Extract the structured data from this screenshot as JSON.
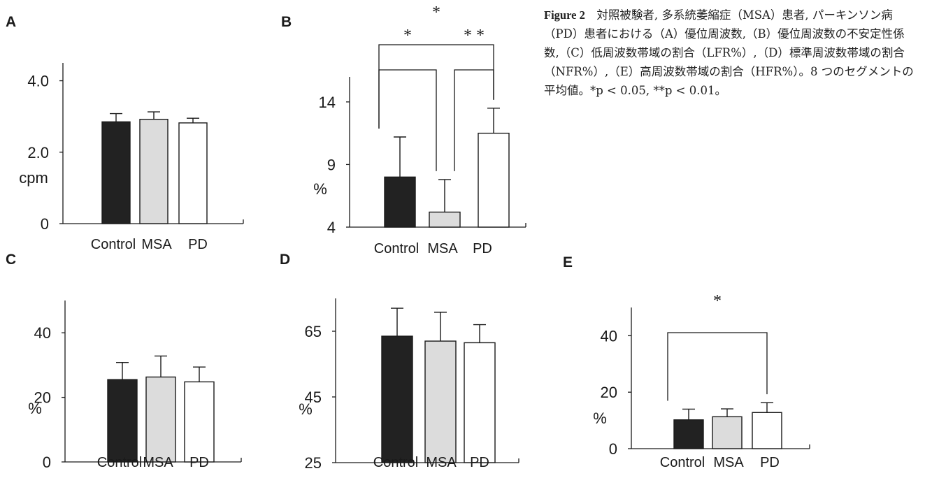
{
  "caption": {
    "label": "Figure 2",
    "text": "対照被験者, 多系統萎縮症（MSA）患者, パーキンソン病（PD）患者における（A）優位周波数,（B）優位周波数の不安定性係数,（C）低周波数帯域の割合（LFR%）,（D）標準周波数帯域の割合（NFR%）,（E）高周波数帯域の割合（HFR%）。8 つのセグメントの平均値。*p < 0.05, **p < 0.01。"
  },
  "colors": {
    "Control": "#222222",
    "MSA": "#dcdcdc",
    "PD": "#ffffff",
    "stroke": "#1a1a1a"
  },
  "chart_data": [
    {
      "panel": "A",
      "type": "bar",
      "categories": [
        "Control",
        "MSA",
        "PD"
      ],
      "values": [
        2.85,
        2.92,
        2.82
      ],
      "errors": [
        0.23,
        0.21,
        0.13
      ],
      "ylabel": "cpm",
      "ylim": [
        0,
        4.5
      ],
      "yticks": [
        0,
        2.0,
        4.0
      ],
      "ytick_labels": [
        "0",
        "2.0",
        "4.0"
      ],
      "significance": []
    },
    {
      "panel": "B",
      "type": "bar",
      "categories": [
        "Control",
        "MSA",
        "PD"
      ],
      "values": [
        8.0,
        5.2,
        11.5
      ],
      "errors": [
        3.2,
        2.6,
        2.0
      ],
      "ylabel": "%",
      "ylim": [
        4,
        16
      ],
      "yticks": [
        4,
        9,
        14
      ],
      "ytick_labels": [
        "4",
        "9",
        "14"
      ],
      "significance": [
        {
          "from": "Control",
          "to": "MSA",
          "label": "*"
        },
        {
          "from": "MSA",
          "to": "PD",
          "label": "* *"
        },
        {
          "from": "Control",
          "to": "PD",
          "label": "*"
        }
      ]
    },
    {
      "panel": "C",
      "type": "bar",
      "categories": [
        "Control",
        "MSA",
        "PD"
      ],
      "values": [
        25.5,
        26.3,
        24.8
      ],
      "errors": [
        5.3,
        6.5,
        4.6
      ],
      "ylabel": "%",
      "ylim": [
        0,
        50
      ],
      "yticks": [
        0,
        20,
        40
      ],
      "ytick_labels": [
        "0",
        "20",
        "40"
      ],
      "significance": []
    },
    {
      "panel": "D",
      "type": "bar",
      "categories": [
        "Control",
        "MSA",
        "PD"
      ],
      "values": [
        63.5,
        62.0,
        61.5
      ],
      "errors": [
        8.5,
        8.8,
        5.5
      ],
      "ylabel": "%",
      "ylim": [
        25,
        75
      ],
      "yticks": [
        25,
        45,
        65
      ],
      "ytick_labels": [
        "25",
        "45",
        "65"
      ],
      "significance": []
    },
    {
      "panel": "E",
      "type": "bar",
      "categories": [
        "Control",
        "MSA",
        "PD"
      ],
      "values": [
        10.2,
        11.3,
        12.8
      ],
      "errors": [
        3.8,
        2.8,
        3.5
      ],
      "ylabel": "%",
      "ylim": [
        0,
        50
      ],
      "yticks": [
        0,
        20,
        40
      ],
      "ytick_labels": [
        "0",
        "20",
        "40"
      ],
      "significance": [
        {
          "from": "Control",
          "to": "PD",
          "label": "*"
        }
      ]
    }
  ]
}
